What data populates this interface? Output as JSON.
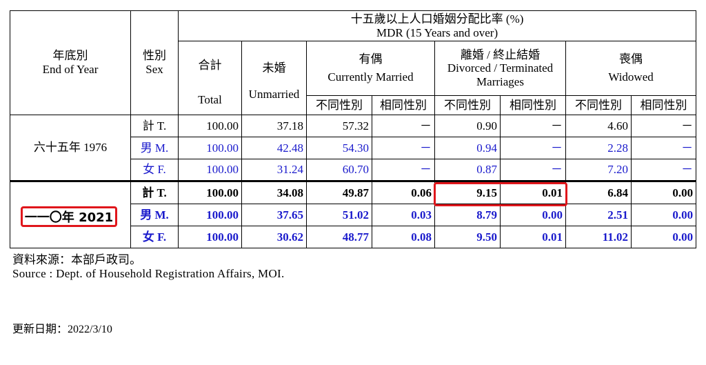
{
  "header": {
    "title_zh": "十五歲以上人口婚姻分配比率 (%)",
    "title_en": "MDR (15 Years and over)",
    "year_zh": "年底別",
    "year_en": "End of Year",
    "sex_zh": "性別",
    "sex_en": "Sex",
    "total_zh": "合計",
    "total_en": "Total",
    "unmarried_zh": "未婚",
    "unmarried_en": "Unmarried",
    "married_zh": "有偶",
    "married_en": "Currently Married",
    "divorced_zh": "離婚 / 終止結婚",
    "divorced_en_1": "Divorced / Terminated",
    "divorced_en_2": "Marriages",
    "widowed_zh": "喪偶",
    "widowed_en": "Widowed",
    "diff_sex": "不同性別",
    "same_sex": "相同性別"
  },
  "rows": [
    {
      "year": "六十五年 1976",
      "sex": "計 T.",
      "total": "100.00",
      "unmarried": "37.18",
      "married_diff": "57.32",
      "married_same": "－",
      "div_diff": "0.90",
      "div_same": "－",
      "wid_diff": "4.60",
      "wid_same": "－"
    },
    {
      "sex": "男 M.",
      "total": "100.00",
      "unmarried": "42.48",
      "married_diff": "54.30",
      "married_same": "－",
      "div_diff": "0.94",
      "div_same": "－",
      "wid_diff": "2.28",
      "wid_same": "－"
    },
    {
      "sex": "女 F.",
      "total": "100.00",
      "unmarried": "31.24",
      "married_diff": "60.70",
      "married_same": "－",
      "div_diff": "0.87",
      "div_same": "－",
      "wid_diff": "7.20",
      "wid_same": "－"
    },
    {
      "year": "一一〇年 2021",
      "sex": "計 T.",
      "total": "100.00",
      "unmarried": "34.08",
      "married_diff": "49.87",
      "married_same": "0.06",
      "div_diff": "9.15",
      "div_same": "0.01",
      "wid_diff": "6.84",
      "wid_same": "0.00"
    },
    {
      "sex": "男 M.",
      "total": "100.00",
      "unmarried": "37.65",
      "married_diff": "51.02",
      "married_same": "0.03",
      "div_diff": "8.79",
      "div_same": "0.00",
      "wid_diff": "2.51",
      "wid_same": "0.00"
    },
    {
      "sex": "女 F.",
      "total": "100.00",
      "unmarried": "30.62",
      "married_diff": "48.77",
      "married_same": "0.08",
      "div_diff": "9.50",
      "div_same": "0.01",
      "wid_diff": "11.02",
      "wid_same": "0.00"
    }
  ],
  "footer": {
    "source_zh": "資料來源：本部戶政司。",
    "source_en": "Source : Dept. of Household Registration Affairs, MOI.",
    "updated": "更新日期：2022/3/10"
  },
  "colors": {
    "highlight": "#e0161b",
    "male_female_text": "#1a1acc"
  }
}
